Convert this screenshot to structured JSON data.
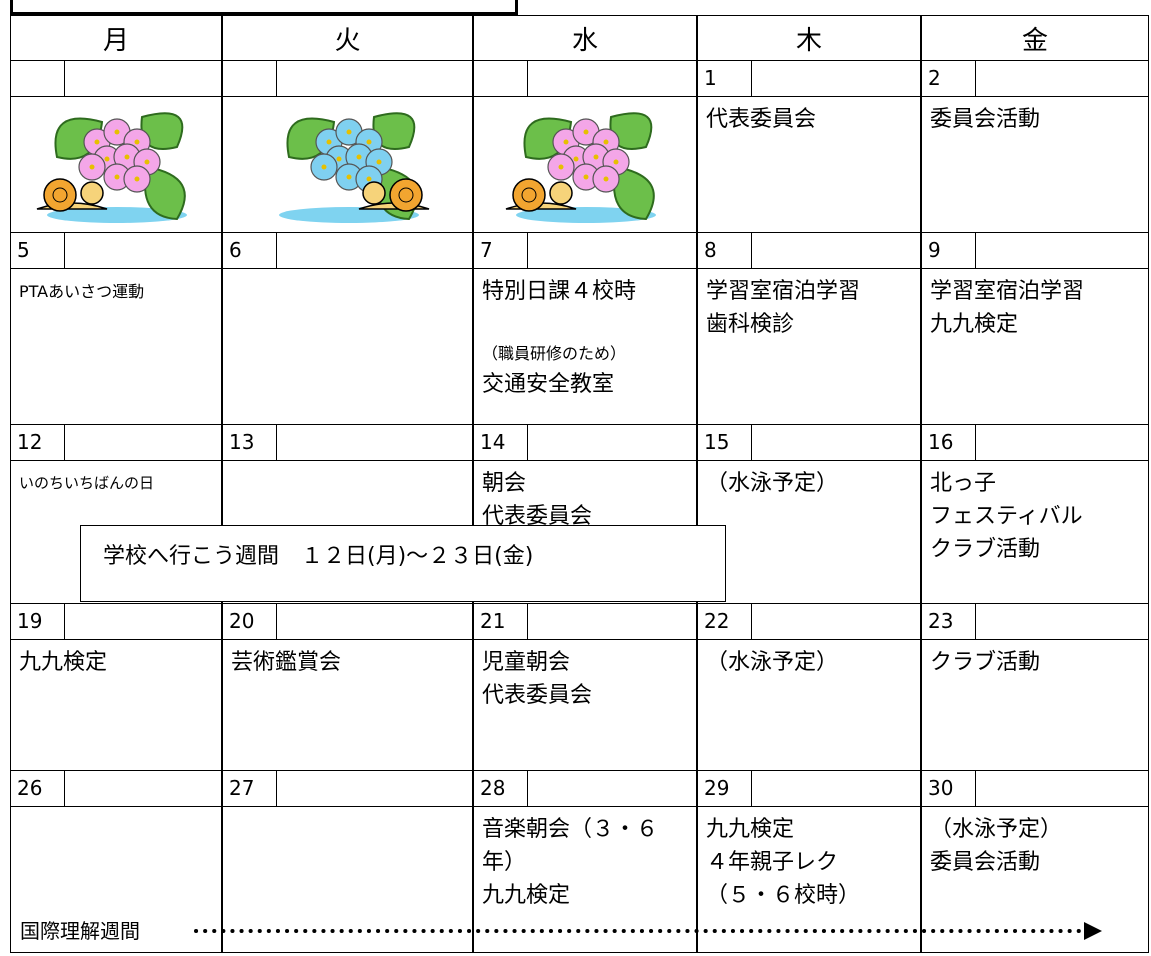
{
  "header": {
    "days": [
      "月",
      "火",
      "水",
      "木",
      "金"
    ]
  },
  "weeks": [
    [
      {},
      {},
      {},
      {
        "date": "1",
        "events": [
          "代表委員会"
        ]
      },
      {
        "date": "2",
        "events": [
          "委員会活動"
        ]
      }
    ],
    [
      {
        "date": "5",
        "events": [
          "PTAあいさつ運動"
        ]
      },
      {
        "date": "6",
        "events": []
      },
      {
        "date": "7",
        "events": [
          "特別日課４校時",
          "（職員研修のため）",
          "交通安全教室"
        ]
      },
      {
        "date": "8",
        "events": [
          "学習室宿泊学習",
          "歯科検診"
        ]
      },
      {
        "date": "9",
        "events": [
          "学習室宿泊学習",
          "九九検定"
        ]
      }
    ],
    [
      {
        "date": "12",
        "events": [
          "いのちいちばんの日"
        ]
      },
      {
        "date": "13",
        "events": []
      },
      {
        "date": "14",
        "events": [
          "朝会",
          "代表委員会"
        ]
      },
      {
        "date": "15",
        "events": [
          "（水泳予定）"
        ]
      },
      {
        "date": "16",
        "events": [
          "北っ子",
          "フェスティバル",
          "クラブ活動"
        ]
      }
    ],
    [
      {
        "date": "19",
        "events": [
          "九九検定"
        ]
      },
      {
        "date": "20",
        "events": [
          "芸術鑑賞会"
        ]
      },
      {
        "date": "21",
        "events": [
          "児童朝会",
          "代表委員会"
        ]
      },
      {
        "date": "22",
        "events": [
          "（水泳予定）"
        ]
      },
      {
        "date": "23",
        "events": [
          "クラブ活動"
        ]
      }
    ],
    [
      {
        "date": "26",
        "events": []
      },
      {
        "date": "27",
        "events": []
      },
      {
        "date": "28",
        "events": [
          "音楽朝会（３・６年）",
          "九九検定"
        ]
      },
      {
        "date": "29",
        "events": [
          "九九検定",
          "４年親子レク",
          "（５・６校時）"
        ]
      },
      {
        "date": "30",
        "events": [
          "（水泳予定）",
          "委員会活動"
        ]
      }
    ]
  ],
  "banner": "学校へ行こう週間　１２日(月)～２３日(金)",
  "footer": "国際理解週間"
}
